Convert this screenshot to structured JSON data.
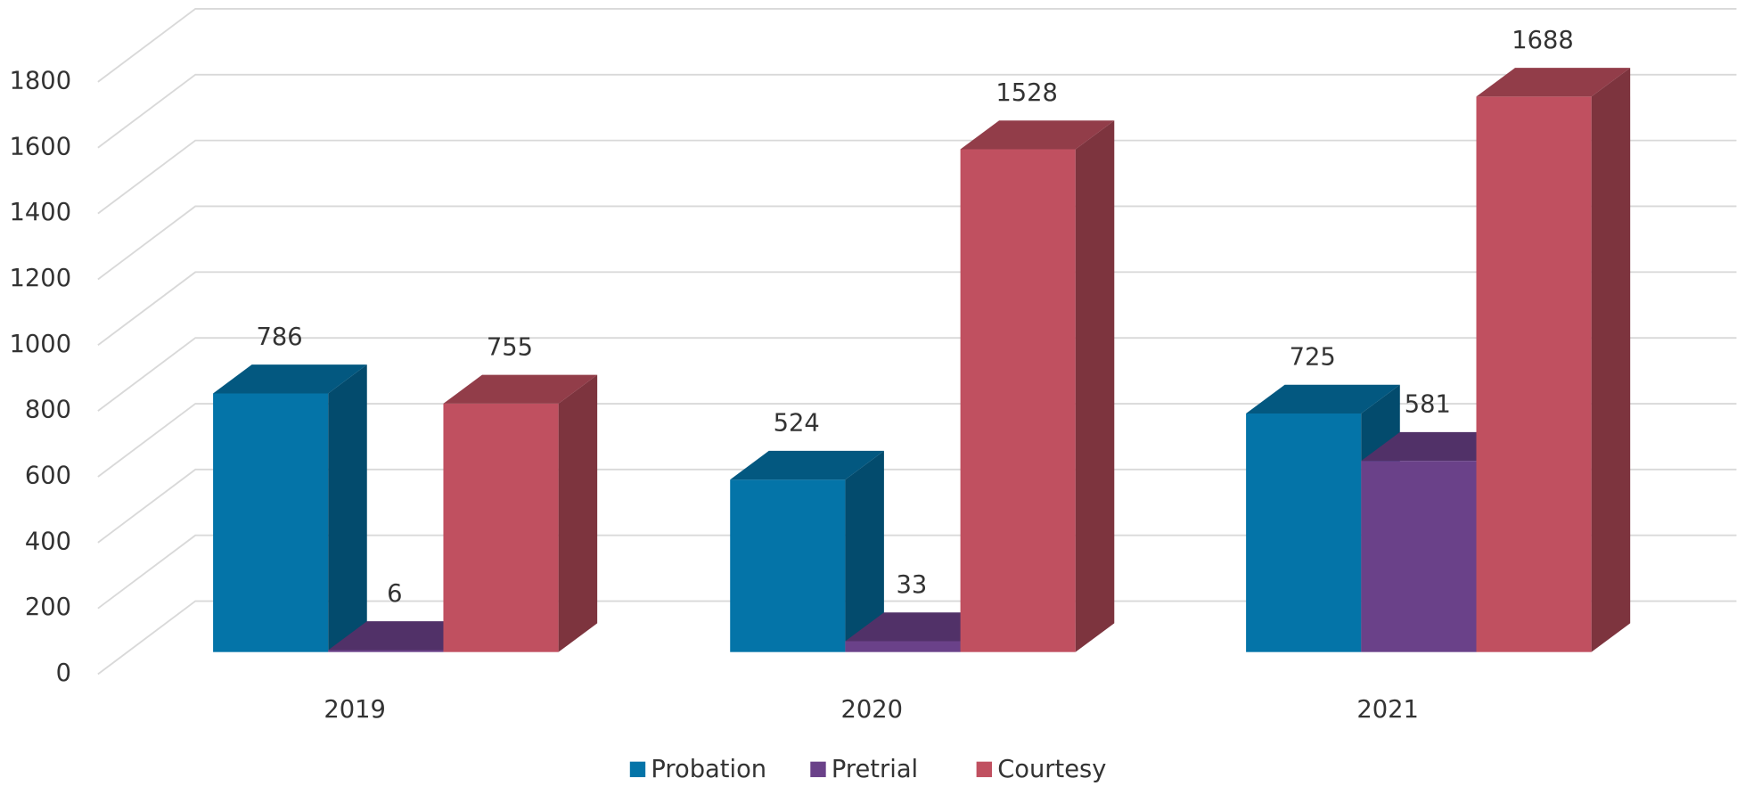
{
  "chart_data": {
    "type": "bar3d",
    "categories": [
      "2019",
      "2020",
      "2021"
    ],
    "series": [
      {
        "name": "Probation",
        "color": "#0474a8",
        "values": [
          786,
          524,
          725
        ]
      },
      {
        "name": "Pretrial",
        "color": "#6a4189",
        "values": [
          6,
          33,
          581
        ]
      },
      {
        "name": "Courtesy",
        "color": "#c05060",
        "values": [
          755,
          1528,
          1688
        ]
      }
    ],
    "ylim": [
      0,
      1800
    ],
    "yticks": [
      0,
      200,
      400,
      600,
      800,
      1000,
      1200,
      1400,
      1600,
      1800
    ],
    "grid": true,
    "legend": "bottom"
  }
}
